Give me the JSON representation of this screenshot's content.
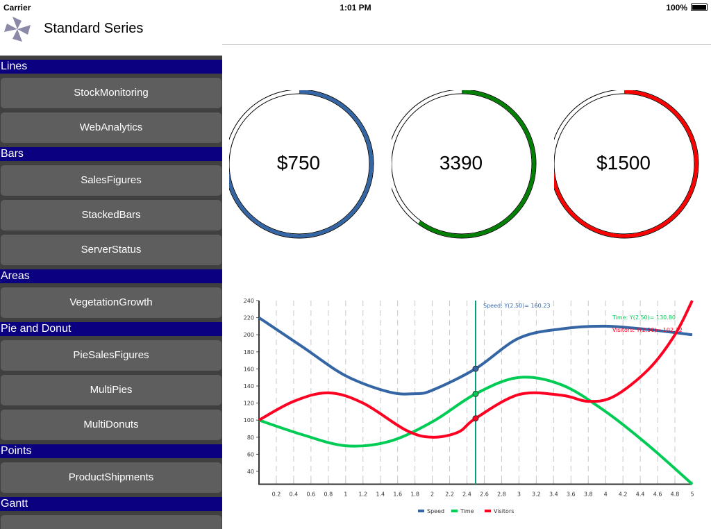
{
  "status": {
    "carrier": "Carrier",
    "time": "1:01 PM",
    "battery": "100%"
  },
  "header": {
    "title": "Standard Series",
    "logo": "pinwheel-logo"
  },
  "sidebar": [
    {
      "label": "Lines",
      "items": [
        "StockMonitoring",
        "WebAnalytics"
      ]
    },
    {
      "label": "Bars",
      "items": [
        "SalesFigures",
        "StackedBars",
        "ServerStatus"
      ]
    },
    {
      "label": "Areas",
      "items": [
        "VegetationGrowth"
      ]
    },
    {
      "label": "Pie and Donut",
      "items": [
        "PieSalesFigures",
        "MultiPies",
        "MultiDonuts"
      ]
    },
    {
      "label": "Points",
      "items": [
        "ProductShipments"
      ]
    },
    {
      "label": "Gantt",
      "items": [
        ""
      ]
    }
  ],
  "gauges": [
    {
      "label": "$750",
      "fraction": 0.75,
      "color": "#3465a4"
    },
    {
      "label": "3390",
      "fraction": 0.6,
      "color": "#008000"
    },
    {
      "label": "$1500",
      "fraction": 0.75,
      "color": "#ff0000"
    }
  ],
  "chart_data": {
    "type": "line",
    "xlim": [
      0,
      5
    ],
    "ylim": [
      25,
      240
    ],
    "xticks": [
      "0.2",
      "0.4",
      "0.6",
      "0.8",
      "1",
      "1.2",
      "1.4",
      "1.6",
      "1.8",
      "2",
      "2.2",
      "2.4",
      "2.6",
      "2.8",
      "3",
      "3.2",
      "3.4",
      "3.6",
      "3.8",
      "4",
      "4.2",
      "4.4",
      "4.6",
      "4.8",
      "5"
    ],
    "yticks": [
      "40",
      "60",
      "80",
      "100",
      "120",
      "140",
      "160",
      "180",
      "200",
      "220",
      "240"
    ],
    "grid": "vertical-dashed",
    "cursor_x": 2.5,
    "legend_position": "bottom",
    "series": [
      {
        "name": "Speed",
        "color": "#3465a4",
        "annotation": "Speed: Y(2.50)= 160.23",
        "x": [
          0,
          0.5,
          1,
          1.5,
          1.8,
          2,
          2.5,
          3,
          3.5,
          4,
          4.5,
          5
        ],
        "y": [
          220,
          186,
          152,
          133,
          131,
          135,
          160.23,
          196,
          207,
          210,
          206,
          200
        ]
      },
      {
        "name": "Time",
        "color": "#00cc55",
        "annotation": "Time: Y(2.50)= 130.80",
        "x": [
          0,
          0.5,
          1,
          1.5,
          2,
          2.5,
          3,
          3.5,
          4,
          4.5,
          5
        ],
        "y": [
          100,
          83,
          70,
          75,
          98,
          130.8,
          150,
          141,
          110,
          70,
          25
        ]
      },
      {
        "name": "Visitors",
        "color": "#ff0022",
        "annotation": "Visitors: Y(2.50)= 102.12",
        "x": [
          0,
          0.4,
          0.8,
          1.2,
          1.7,
          2,
          2.3,
          2.5,
          3,
          3.5,
          3.8,
          4.1,
          4.5,
          4.8,
          5
        ],
        "y": [
          100,
          122,
          132,
          120,
          88,
          80,
          86,
          102.12,
          130,
          129,
          122,
          128,
          160,
          200,
          240
        ]
      }
    ]
  }
}
